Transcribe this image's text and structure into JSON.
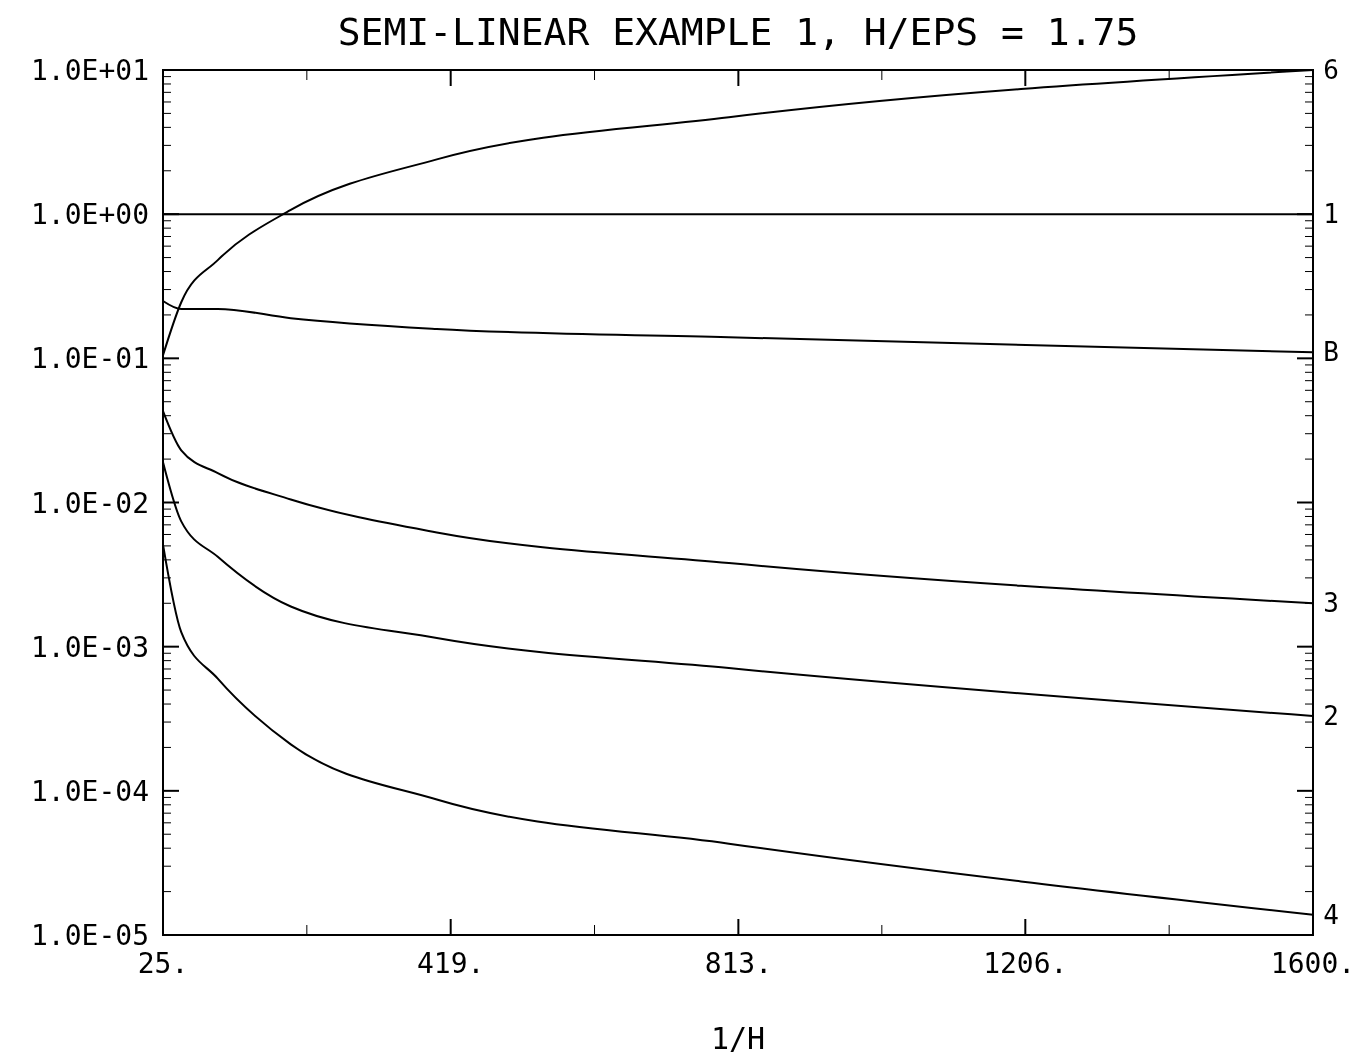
{
  "chart_data": {
    "type": "line",
    "title": "SEMI-LINEAR    EXAMPLE 1, H/EPS = 1.75",
    "xlabel": "1/H",
    "log": "y",
    "grid": false,
    "legend": "right",
    "marker": "none",
    "line_style": "solid",
    "x": [
      25,
      50,
      100,
      200,
      400,
      800,
      1600
    ],
    "xlim": [
      25,
      1600
    ],
    "xticks": [
      {
        "value": 25,
        "label": "25."
      },
      {
        "value": 419,
        "label": "419."
      },
      {
        "value": 813,
        "label": "813."
      },
      {
        "value": 1206,
        "label": "1206."
      },
      {
        "value": 1600,
        "label": "1600."
      }
    ],
    "ylim": [
      1e-05,
      10
    ],
    "yticks": [
      {
        "value": 10,
        "label": "1.0E+01"
      },
      {
        "value": 1,
        "label": "1.0E+00"
      },
      {
        "value": 0.1,
        "label": "1.0E-01"
      },
      {
        "value": 0.01,
        "label": "1.0E-02"
      },
      {
        "value": 0.001,
        "label": "1.0E-03"
      },
      {
        "value": 0.0001,
        "label": "1.0E-04"
      },
      {
        "value": 1e-05,
        "label": "1.0E-05"
      }
    ],
    "series": [
      {
        "name": "1",
        "color": "#000000",
        "values": [
          1,
          1,
          1,
          1,
          1,
          1,
          1
        ]
      },
      {
        "name": "2",
        "color": "#000000",
        "values": [
          0.019,
          0.0074,
          0.0042,
          0.0019,
          0.00115,
          0.00071,
          0.00033
        ]
      },
      {
        "name": "3",
        "color": "#000000",
        "values": [
          0.043,
          0.023,
          0.016,
          0.0105,
          0.0062,
          0.0038,
          0.002
        ]
      },
      {
        "name": "4",
        "color": "#000000",
        "values": [
          0.0051,
          0.00126,
          0.0006,
          0.00021,
          8.7e-05,
          4.3e-05,
          1.38e-05
        ]
      },
      {
        "name": "B",
        "color": "#000000",
        "values": [
          0.25,
          0.22,
          0.22,
          0.19,
          0.16,
          0.14,
          0.11
        ]
      },
      {
        "name": "6",
        "color": "#000000",
        "values": [
          0.105,
          0.245,
          0.48,
          1.07,
          2.4,
          4.7,
          10
        ]
      }
    ]
  }
}
